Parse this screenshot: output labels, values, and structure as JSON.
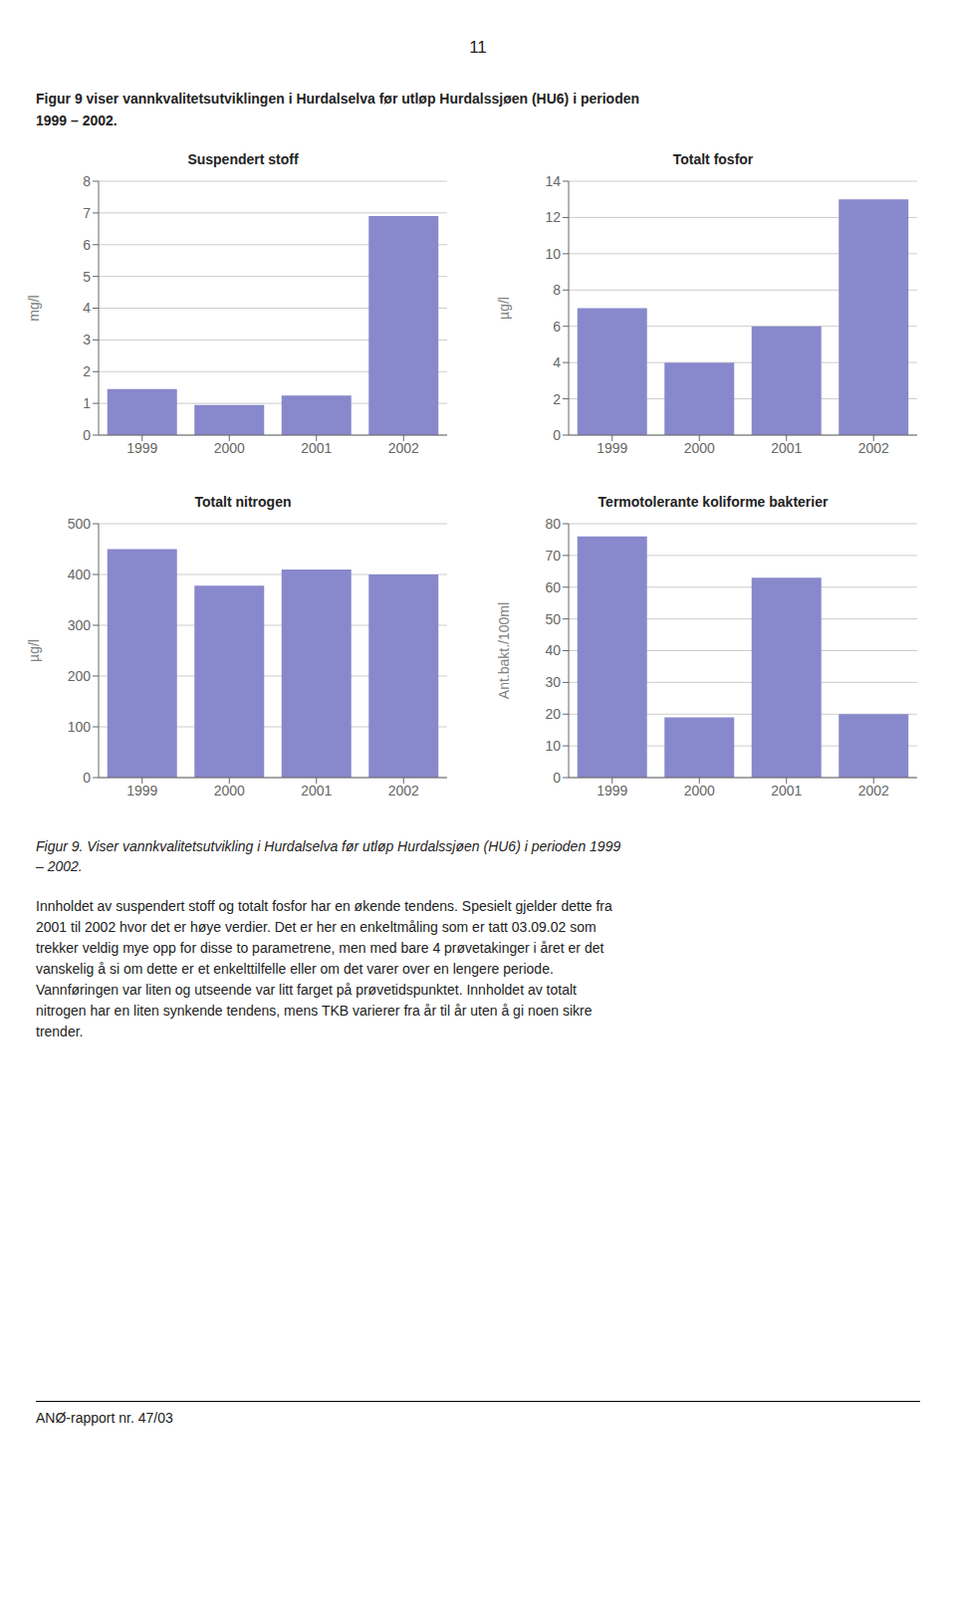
{
  "chart_data": [
    {
      "type": "bar",
      "title": "Suspendert stoff",
      "ylabel": "mg/l",
      "categories": [
        "1999",
        "2000",
        "2001",
        "2002"
      ],
      "values": [
        1.45,
        0.95,
        1.25,
        6.9
      ],
      "color": "#8888cc",
      "ylim": [
        0,
        8
      ],
      "yticks": [
        0,
        1,
        2,
        3,
        4,
        5,
        6,
        7,
        8
      ],
      "grid": true
    },
    {
      "type": "bar",
      "title": "Totalt fosfor",
      "ylabel": "µg/l",
      "categories": [
        "1999",
        "2000",
        "2001",
        "2002"
      ],
      "values": [
        7.0,
        4.0,
        6.0,
        13.0
      ],
      "color": "#8888cc",
      "ylim": [
        0,
        14
      ],
      "yticks": [
        0,
        2,
        4,
        6,
        8,
        10,
        12,
        14
      ],
      "grid": true
    },
    {
      "type": "bar",
      "title": "Totalt nitrogen",
      "ylabel": "µg/l",
      "categories": [
        "1999",
        "2000",
        "2001",
        "2002"
      ],
      "values": [
        450,
        378,
        410,
        400
      ],
      "color": "#8888cc",
      "ylim": [
        0,
        500
      ],
      "yticks": [
        0,
        100,
        200,
        300,
        400,
        500
      ],
      "grid": true
    },
    {
      "type": "bar",
      "title": "Termotolerante koliforme bakterier",
      "ylabel": "Ant.bakt./100ml",
      "categories": [
        "1999",
        "2000",
        "2001",
        "2002"
      ],
      "values": [
        76,
        19,
        63,
        20
      ],
      "color": "#8888cc",
      "ylim": [
        0,
        80
      ],
      "yticks": [
        0,
        10,
        20,
        30,
        40,
        50,
        60,
        70,
        80
      ],
      "grid": true
    }
  ],
  "annotations": [
    "11",
    "Figur 9 viser vannkvalitetsutviklingen i Hurdalselva før utløp Hurdalssjøen (HU6) i perioden",
    "1999 – 2002.",
    "Figur 9.  Viser vannkvalitetsutvikling i Hurdalselva før utløp Hurdalssjøen (HU6) i perioden 1999\n– 2002.",
    "Innholdet av suspendert stoff og totalt fosfor har en økende tendens. Spesielt gjelder dette fra",
    "2001 til 2002 hvor det er høye verdier. Det er her en enkeltmåling som er tatt 03.09.02 som",
    "trekker veldig mye opp for disse to parametrene, men med bare 4 prøvetakinger i året er det",
    "vanskelig å si om dette er et enkelttilfelle eller om det varer over en lengere periode.",
    "Vannføringen var liten og utseende var litt farget på prøvetidspunktet. Innholdet av totalt",
    "nitrogen har en liten synkende tendens, mens TKB varierer fra år til år uten å gi noen sikre",
    "trender.",
    "ANØ-rapport nr. 47/03"
  ]
}
